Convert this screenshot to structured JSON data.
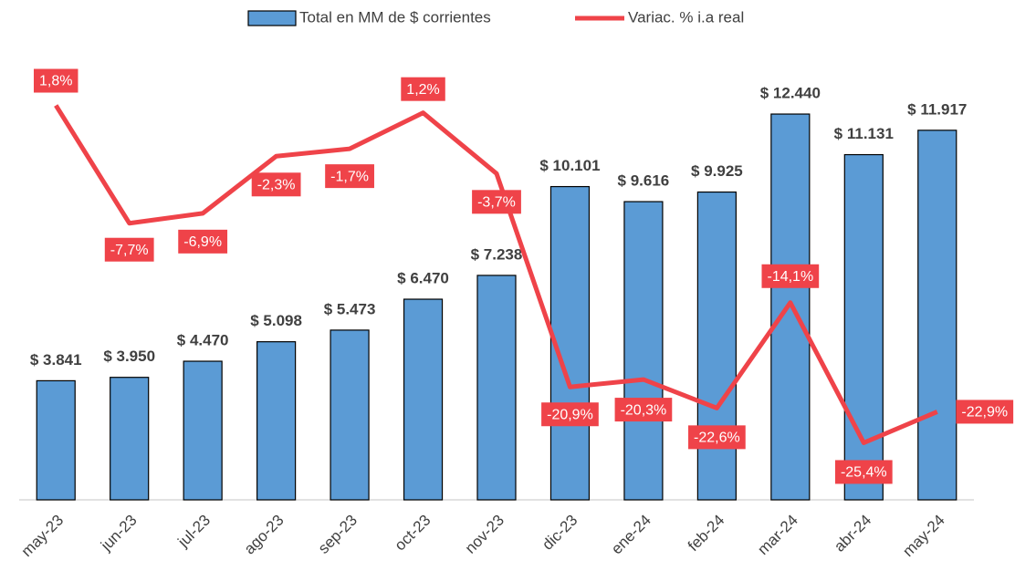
{
  "chart_data": {
    "type": "bar_line",
    "categories": [
      "may-23",
      "jun-23",
      "jul-23",
      "ago-23",
      "sep-23",
      "oct-23",
      "nov-23",
      "dic-23",
      "ene-24",
      "feb-24",
      "mar-24",
      "abr-24",
      "may-24"
    ],
    "series": [
      {
        "name": "Total en MM de $ corrientes",
        "type": "bar",
        "color": "#5b9bd5",
        "axis": "y",
        "values": [
          3841,
          3950,
          4470,
          5098,
          5473,
          6470,
          7238,
          10101,
          9616,
          9925,
          12440,
          11131,
          11917
        ],
        "value_labels": [
          "$ 3.841",
          "$ 3.950",
          "$ 4.470",
          "$ 5.098",
          "$ 5.473",
          "$ 6.470",
          "$ 7.238",
          "$ 10.101",
          "$ 9.616",
          "$ 9.925",
          "$ 12.440",
          "$ 11.131",
          "$ 11.917"
        ]
      },
      {
        "name": "Variac. % i.a real",
        "type": "line",
        "color": "#ef4349",
        "axis": "y2",
        "values": [
          1.8,
          -7.7,
          -6.9,
          -2.3,
          -1.7,
          1.2,
          -3.7,
          -20.9,
          -20.3,
          -22.6,
          -14.1,
          -25.4,
          -22.9
        ],
        "value_labels": [
          "1,8%",
          "-7,7%",
          "-6,9%",
          "-2,3%",
          "-1,7%",
          "1,2%",
          "-3,7%",
          "-20,9%",
          "-20,3%",
          "-22,6%",
          "-14,1%",
          "-25,4%",
          "-22,9%"
        ]
      }
    ],
    "ylim": [
      0,
      14000
    ],
    "y2lim": [
      -30,
      5
    ],
    "legend": "top"
  }
}
